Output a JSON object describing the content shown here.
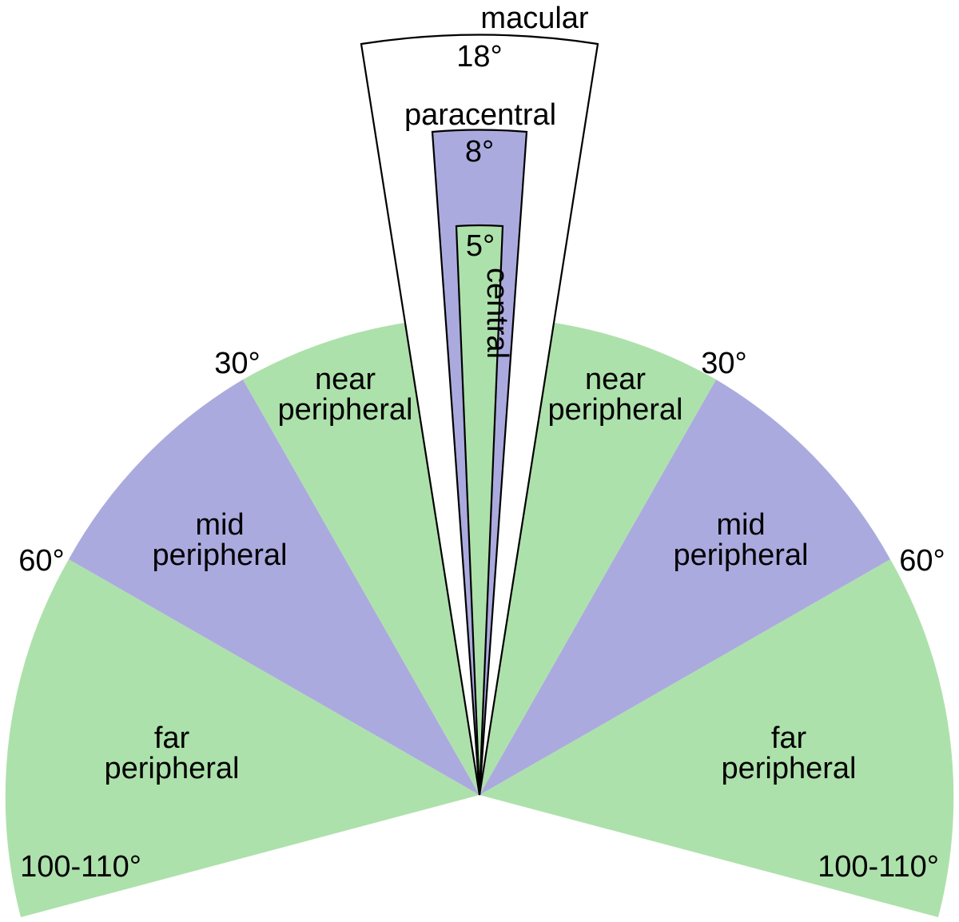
{
  "colors": {
    "green": "#ade1ab",
    "purple": "#abaadf",
    "white": "#ffffff",
    "outline": "#000000",
    "text": "#000000"
  },
  "zones": {
    "far_peripheral": {
      "line1": "far",
      "line2": "peripheral",
      "angle_label": "100-110°"
    },
    "mid_peripheral": {
      "line1": "mid",
      "line2": "peripheral",
      "angle_label": "60°"
    },
    "near_peripheral": {
      "line1": "near",
      "line2": "peripheral",
      "angle_label": "30°"
    },
    "macular": {
      "label": "macular",
      "angle_label": "18°"
    },
    "paracentral": {
      "label": "paracentral",
      "angle_label": "8°"
    },
    "central": {
      "label": "central",
      "angle_label": "5°"
    }
  }
}
